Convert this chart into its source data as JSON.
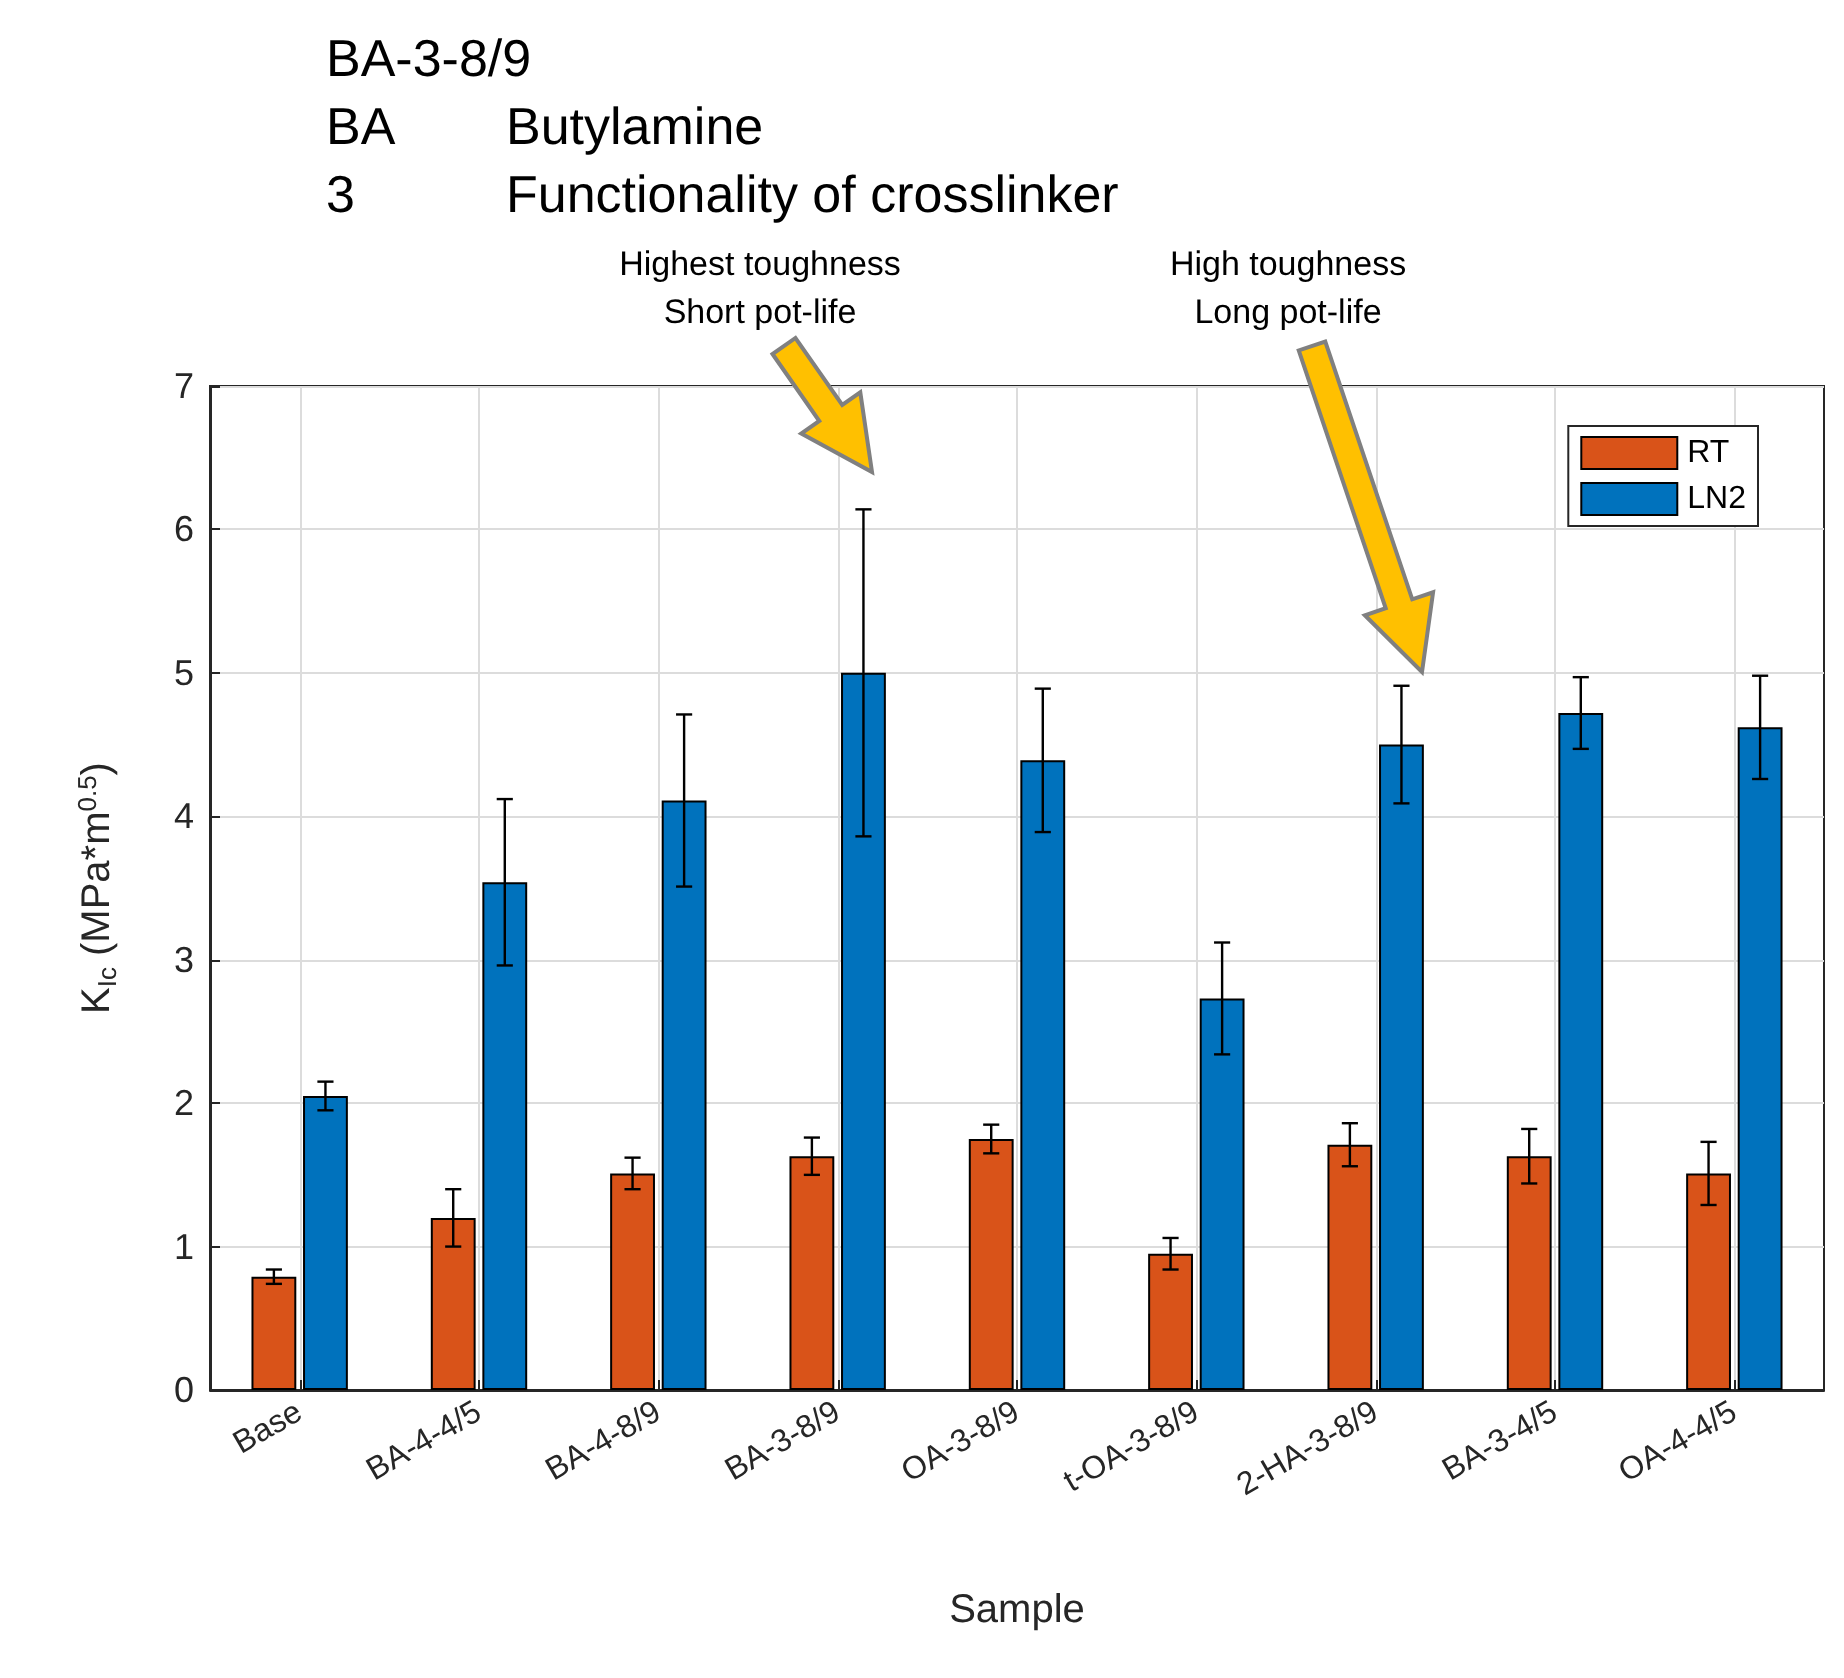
{
  "chart_data": {
    "type": "bar",
    "xlabel": "Sample",
    "ylabel": "K$_{Ic}$ (MPa*m$^{0.5}$)",
    "categories": [
      "Base",
      "BA-4-4/5",
      "BA-4-8/9",
      "BA-3-8/9",
      "OA-3-8/9",
      "t-OA-3-8/9",
      "2-HA-3-8/9",
      "BA-3-4/5",
      "OA-4-4/5"
    ],
    "series": [
      {
        "name": "RT",
        "color": "#d95319",
        "values": [
          0.79,
          1.2,
          1.51,
          1.63,
          1.75,
          0.95,
          1.71,
          1.63,
          1.51
        ],
        "errors": [
          0.05,
          0.2,
          0.11,
          0.13,
          0.1,
          0.11,
          0.15,
          0.19,
          0.22
        ]
      },
      {
        "name": "LN2",
        "color": "#0072bd",
        "values": [
          2.05,
          3.54,
          4.11,
          5.0,
          4.39,
          2.73,
          4.5,
          4.72,
          4.62
        ],
        "errors": [
          0.1,
          0.58,
          0.6,
          1.14,
          0.5,
          0.39,
          0.41,
          0.25,
          0.36
        ]
      }
    ],
    "ylim": [
      0,
      7
    ],
    "yticks": [
      0,
      1,
      2,
      3,
      4,
      5,
      6,
      7
    ],
    "grid": true,
    "legend": "top right",
    "annotations": [
      "BA-3-8/9",
      "BA",
      "Butylamine",
      "3",
      "Functionality of crosslinker",
      "Highest toughness\nShort pot-life",
      "High toughness\nLong pot-life"
    ]
  }
}
